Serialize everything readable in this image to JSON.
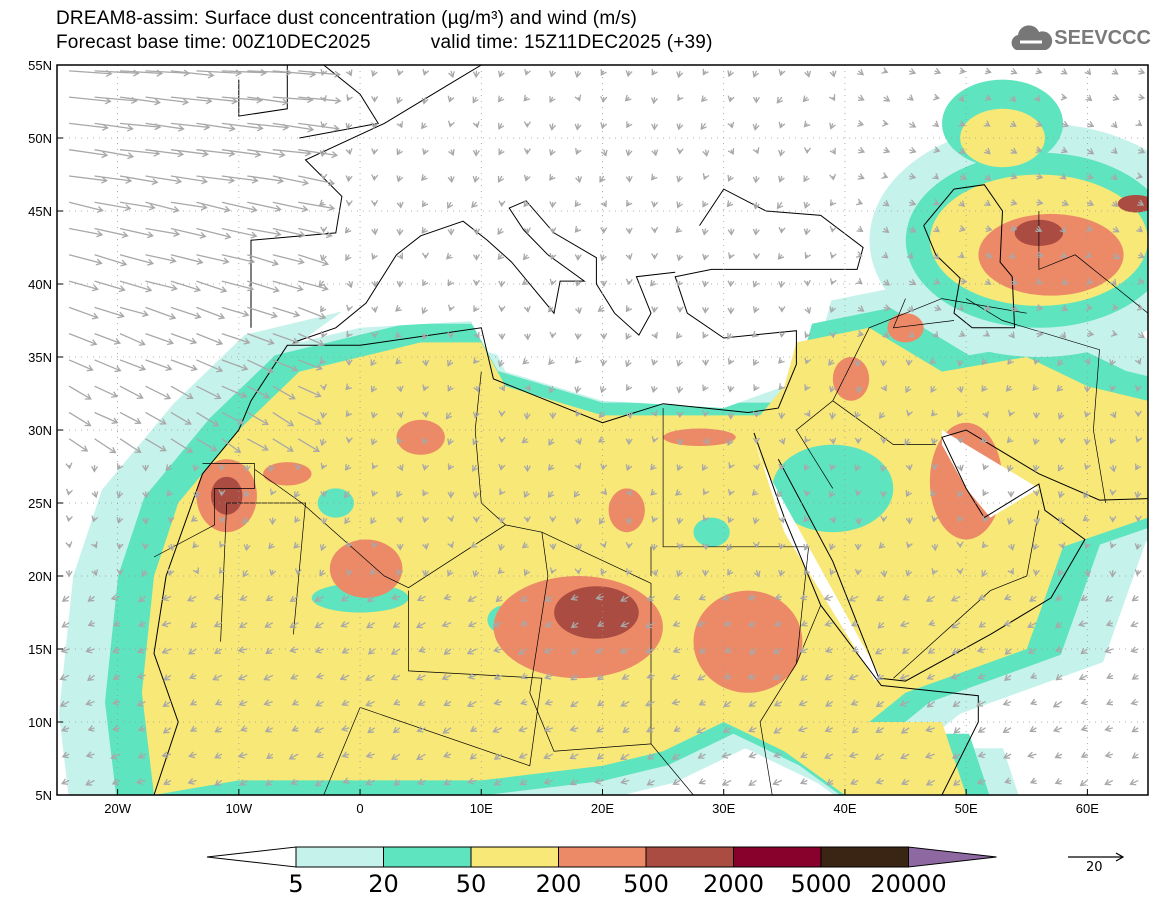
{
  "header": {
    "title": "DREAM8-assim: Surface dust concentration (µg/m³) and wind (m/s)",
    "base_time": "Forecast base time: 00Z10DEC2025",
    "valid_time": "valid time: 15Z11DEC2025 (+39)"
  },
  "logo": {
    "text": "SEEVCCC",
    "icon": "cloud-icon"
  },
  "axes": {
    "lat_labels": [
      {
        "v": 5,
        "t": "5N"
      },
      {
        "v": 10,
        "t": "10N"
      },
      {
        "v": 15,
        "t": "15N"
      },
      {
        "v": 20,
        "t": "20N"
      },
      {
        "v": 25,
        "t": "25N"
      },
      {
        "v": 30,
        "t": "30N"
      },
      {
        "v": 35,
        "t": "35N"
      },
      {
        "v": 40,
        "t": "40N"
      },
      {
        "v": 45,
        "t": "45N"
      },
      {
        "v": 50,
        "t": "50N"
      },
      {
        "v": 55,
        "t": "55N"
      }
    ],
    "lon_labels": [
      {
        "v": -20,
        "t": "20W"
      },
      {
        "v": -10,
        "t": "10W"
      },
      {
        "v": 0,
        "t": "0"
      },
      {
        "v": 10,
        "t": "10E"
      },
      {
        "v": 20,
        "t": "20E"
      },
      {
        "v": 30,
        "t": "30E"
      },
      {
        "v": 40,
        "t": "40E"
      },
      {
        "v": 50,
        "t": "50E"
      },
      {
        "v": 60,
        "t": "60E"
      }
    ],
    "lon_range": [
      -25,
      65
    ],
    "lat_range": [
      5,
      55
    ]
  },
  "colorbar": {
    "labels": [
      "5",
      "20",
      "50",
      "200",
      "500",
      "2000",
      "5000",
      "20000"
    ],
    "colors": [
      "#c6f2ec",
      "#5ee4be",
      "#f8e878",
      "#ec8a68",
      "#ab4c42",
      "#88002c",
      "#3a2414",
      "#8e68a0"
    ]
  },
  "wind_reference": {
    "label": "20"
  }
}
